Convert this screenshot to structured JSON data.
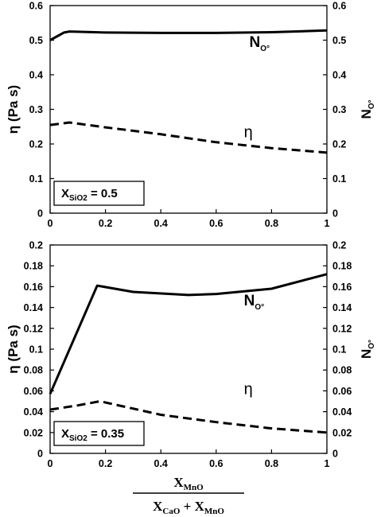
{
  "chart_data": [
    {
      "type": "line",
      "panel": "top",
      "composition_label": {
        "symbol": "X",
        "sub": "SiO2",
        "rest": " = 0.5"
      },
      "ylabel_left": "η (Pa s)",
      "ylabel_right": {
        "base": "N",
        "sub": "O°"
      },
      "ylim_left": [
        0,
        0.6
      ],
      "yticks_left": [
        "0",
        "0.1",
        "0.2",
        "0.3",
        "0.4",
        "0.5",
        "0.6"
      ],
      "ylim_right": [
        0,
        0.6
      ],
      "yticks_right": [
        "0",
        "0.1",
        "0.2",
        "0.3",
        "0.4",
        "0.5",
        "0.6"
      ],
      "xlim": [
        0,
        1
      ],
      "xticks": [
        "0",
        "0.2",
        "0.4",
        "0.6",
        "0.8",
        "1"
      ],
      "series": [
        {
          "name": {
            "base": "N",
            "sub": "O°"
          },
          "axis": "right",
          "style": "solid",
          "label_at": [
            0.72,
            0.48
          ],
          "x": [
            0,
            0.05,
            0.07,
            0.2,
            0.4,
            0.6,
            0.8,
            1.0
          ],
          "y": [
            0.5,
            0.522,
            0.525,
            0.522,
            0.521,
            0.521,
            0.523,
            0.528
          ]
        },
        {
          "name": "η",
          "axis": "left",
          "style": "dashed",
          "label_at": [
            0.7,
            0.22
          ],
          "x": [
            0,
            0.07,
            0.2,
            0.4,
            0.6,
            0.8,
            1.0
          ],
          "y": [
            0.255,
            0.262,
            0.248,
            0.228,
            0.205,
            0.188,
            0.175
          ]
        }
      ]
    },
    {
      "type": "line",
      "panel": "bottom",
      "composition_label": {
        "symbol": "X",
        "sub": "SiO2",
        "rest": " = 0.35"
      },
      "ylabel_left": "η (Pa s)",
      "ylabel_right": {
        "base": "N",
        "sub": "O°"
      },
      "ylim_left": [
        0,
        0.2
      ],
      "yticks_left": [
        "0",
        "0.02",
        "0.04",
        "0.06",
        "0.08",
        "0.1",
        "0.12",
        "0.14",
        "0.16",
        "0.18",
        "0.2"
      ],
      "ylim_right": [
        0,
        0.2
      ],
      "yticks_right": [
        "0",
        "0.02",
        "0.04",
        "0.06",
        "0.08",
        "0.1",
        "0.12",
        "0.14",
        "0.16",
        "0.18",
        "0.2"
      ],
      "xlim": [
        0,
        1
      ],
      "xticks": [
        "0",
        "0.2",
        "0.4",
        "0.6",
        "0.8",
        "1"
      ],
      "series": [
        {
          "name": {
            "base": "N",
            "sub": "O°"
          },
          "axis": "right",
          "style": "solid",
          "label_at": [
            0.7,
            0.142
          ],
          "x": [
            0,
            0.17,
            0.3,
            0.5,
            0.6,
            0.8,
            1.0
          ],
          "y": [
            0.057,
            0.161,
            0.155,
            0.152,
            0.153,
            0.158,
            0.172
          ]
        },
        {
          "name": "η",
          "axis": "left",
          "style": "dashed",
          "label_at": [
            0.7,
            0.057
          ],
          "x": [
            0,
            0.1,
            0.18,
            0.3,
            0.4,
            0.6,
            0.8,
            1.0
          ],
          "y": [
            0.042,
            0.046,
            0.05,
            0.043,
            0.037,
            0.03,
            0.024,
            0.02
          ]
        }
      ]
    }
  ],
  "shared_xlabel": {
    "numerator": {
      "base": "X",
      "sub": "MnO"
    },
    "denominator": [
      {
        "base": "X",
        "sub": "CaO"
      },
      {
        "op": " + "
      },
      {
        "base": "X",
        "sub": "MnO"
      }
    ]
  }
}
